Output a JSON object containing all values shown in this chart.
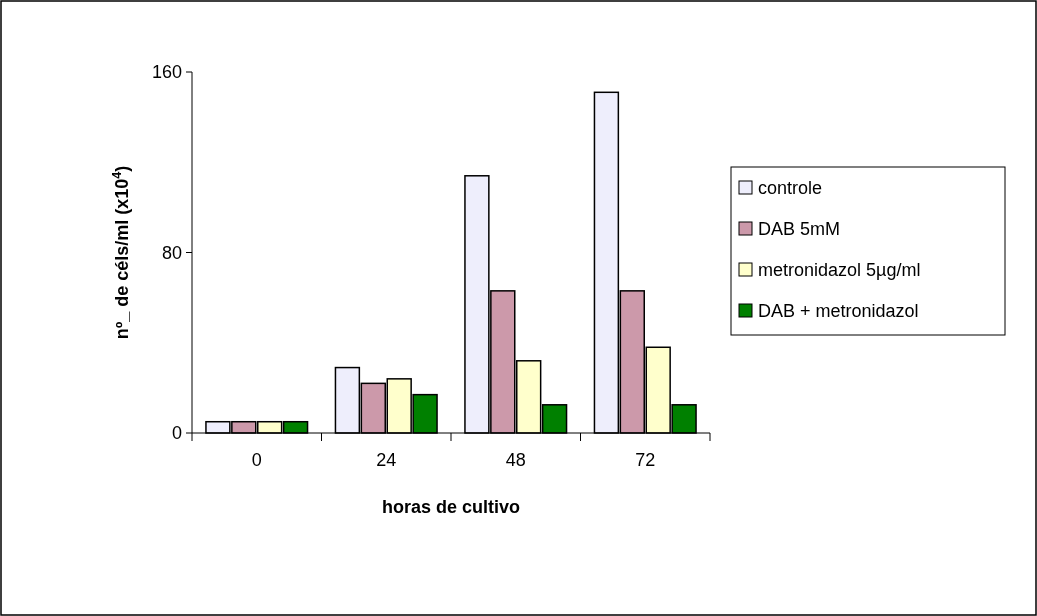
{
  "chart_data": {
    "type": "bar",
    "xlabel": "horas de cultivo",
    "ylabel": "nº_ de céls/ml (x10$^{4}$)",
    "categories": [
      "0",
      "24",
      "48",
      "72"
    ],
    "series": [
      {
        "name": "controle",
        "color": "#eeeefc",
        "values": [
          5,
          29,
          114,
          151
        ]
      },
      {
        "name": "DAB 5mM",
        "color": "#cc99aa",
        "values": [
          5,
          22,
          63,
          63
        ]
      },
      {
        "name": "metronidazol 5µg/ml",
        "color": "#ffffcc",
        "values": [
          5,
          24,
          32,
          38
        ]
      },
      {
        "name": "DAB + metronidazol",
        "color": "#008000",
        "values": [
          5,
          17,
          12.5,
          12.5
        ]
      }
    ],
    "ylim": [
      0,
      160
    ],
    "yticks": [
      0,
      80,
      160
    ],
    "grid": false,
    "legend": "right"
  }
}
